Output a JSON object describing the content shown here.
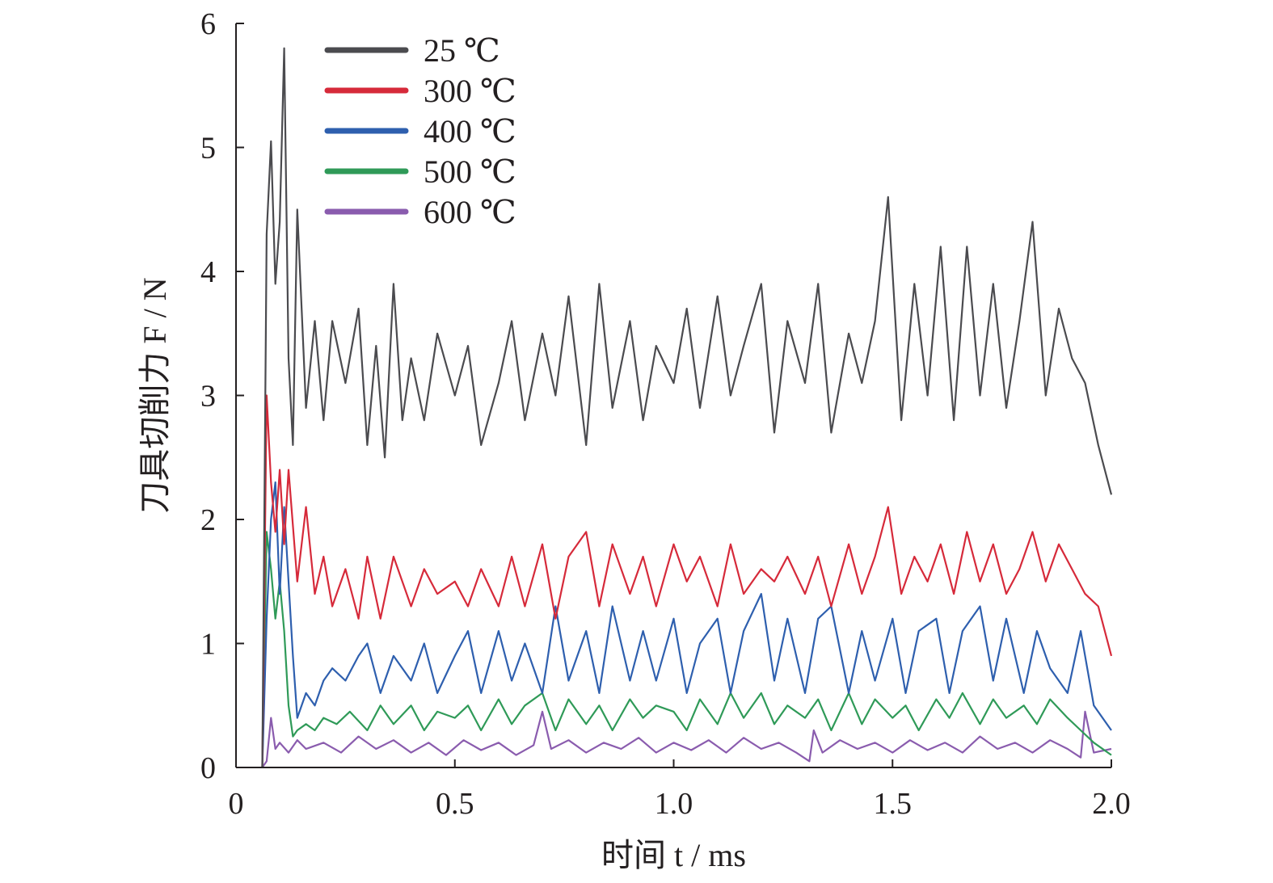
{
  "chart_data": {
    "type": "line",
    "title": "",
    "xlabel": "时间 t / ms",
    "ylabel": "刀具切削力 F / N",
    "xlim": [
      0,
      2.0
    ],
    "ylim": [
      0,
      6
    ],
    "xticks": [
      "0",
      "0.5",
      "1.0",
      "1.5",
      "2.0"
    ],
    "yticks": [
      "0",
      "1",
      "2",
      "3",
      "4",
      "5",
      "6"
    ],
    "grid": false,
    "legend_position": "top-left",
    "series": [
      {
        "name": "25 ℃",
        "color": "#4b4b4f",
        "x": [
          0.06,
          0.07,
          0.08,
          0.09,
          0.1,
          0.11,
          0.12,
          0.13,
          0.14,
          0.16,
          0.18,
          0.2,
          0.22,
          0.25,
          0.28,
          0.3,
          0.32,
          0.34,
          0.36,
          0.38,
          0.4,
          0.43,
          0.46,
          0.5,
          0.53,
          0.56,
          0.6,
          0.63,
          0.66,
          0.7,
          0.73,
          0.76,
          0.8,
          0.83,
          0.86,
          0.9,
          0.93,
          0.96,
          1.0,
          1.03,
          1.06,
          1.1,
          1.13,
          1.16,
          1.2,
          1.23,
          1.26,
          1.3,
          1.33,
          1.36,
          1.4,
          1.43,
          1.46,
          1.49,
          1.52,
          1.55,
          1.58,
          1.61,
          1.64,
          1.67,
          1.7,
          1.73,
          1.76,
          1.79,
          1.82,
          1.85,
          1.88,
          1.91,
          1.94,
          1.97,
          2.0
        ],
        "values": [
          0.0,
          4.3,
          5.05,
          3.9,
          4.4,
          5.8,
          3.3,
          2.6,
          4.5,
          2.9,
          3.6,
          2.8,
          3.6,
          3.1,
          3.7,
          2.6,
          3.4,
          2.5,
          3.9,
          2.8,
          3.3,
          2.8,
          3.5,
          3.0,
          3.4,
          2.6,
          3.1,
          3.6,
          2.8,
          3.5,
          3.0,
          3.8,
          2.6,
          3.9,
          2.9,
          3.6,
          2.8,
          3.4,
          3.1,
          3.7,
          2.9,
          3.8,
          3.0,
          3.4,
          3.9,
          2.7,
          3.6,
          3.1,
          3.9,
          2.7,
          3.5,
          3.1,
          3.6,
          4.6,
          2.8,
          3.9,
          3.0,
          4.2,
          2.8,
          4.2,
          3.0,
          3.9,
          2.9,
          3.6,
          4.4,
          3.0,
          3.7,
          3.3,
          3.1,
          2.6,
          2.2
        ]
      },
      {
        "name": "300 ℃",
        "color": "#d62a3a",
        "x": [
          0.06,
          0.07,
          0.08,
          0.09,
          0.1,
          0.11,
          0.12,
          0.14,
          0.16,
          0.18,
          0.2,
          0.22,
          0.25,
          0.28,
          0.3,
          0.33,
          0.36,
          0.4,
          0.43,
          0.46,
          0.5,
          0.53,
          0.56,
          0.6,
          0.63,
          0.66,
          0.7,
          0.73,
          0.76,
          0.8,
          0.83,
          0.86,
          0.9,
          0.93,
          0.96,
          1.0,
          1.03,
          1.06,
          1.1,
          1.13,
          1.16,
          1.2,
          1.23,
          1.26,
          1.3,
          1.33,
          1.36,
          1.4,
          1.43,
          1.46,
          1.49,
          1.52,
          1.55,
          1.58,
          1.61,
          1.64,
          1.67,
          1.7,
          1.73,
          1.76,
          1.79,
          1.82,
          1.85,
          1.88,
          1.91,
          1.94,
          1.97,
          2.0
        ],
        "values": [
          0.0,
          3.0,
          2.3,
          1.9,
          2.4,
          1.8,
          2.4,
          1.5,
          2.1,
          1.4,
          1.7,
          1.3,
          1.6,
          1.2,
          1.7,
          1.2,
          1.7,
          1.3,
          1.6,
          1.4,
          1.5,
          1.3,
          1.6,
          1.3,
          1.7,
          1.3,
          1.8,
          1.2,
          1.7,
          1.9,
          1.3,
          1.8,
          1.4,
          1.7,
          1.3,
          1.8,
          1.5,
          1.7,
          1.3,
          1.8,
          1.4,
          1.6,
          1.5,
          1.7,
          1.4,
          1.7,
          1.3,
          1.8,
          1.4,
          1.7,
          2.1,
          1.4,
          1.7,
          1.5,
          1.8,
          1.4,
          1.9,
          1.5,
          1.8,
          1.4,
          1.6,
          1.9,
          1.5,
          1.8,
          1.6,
          1.4,
          1.3,
          0.9
        ]
      },
      {
        "name": "400 ℃",
        "color": "#2e5fae",
        "x": [
          0.06,
          0.07,
          0.08,
          0.09,
          0.1,
          0.11,
          0.12,
          0.13,
          0.14,
          0.16,
          0.18,
          0.2,
          0.22,
          0.25,
          0.28,
          0.3,
          0.33,
          0.36,
          0.4,
          0.43,
          0.46,
          0.5,
          0.53,
          0.56,
          0.6,
          0.63,
          0.66,
          0.7,
          0.73,
          0.76,
          0.8,
          0.83,
          0.86,
          0.9,
          0.93,
          0.96,
          1.0,
          1.03,
          1.06,
          1.1,
          1.13,
          1.16,
          1.2,
          1.23,
          1.26,
          1.3,
          1.33,
          1.36,
          1.4,
          1.43,
          1.46,
          1.5,
          1.53,
          1.56,
          1.6,
          1.63,
          1.66,
          1.7,
          1.73,
          1.76,
          1.8,
          1.83,
          1.86,
          1.9,
          1.93,
          1.96,
          2.0
        ],
        "values": [
          0.0,
          1.2,
          2.0,
          2.3,
          1.4,
          2.1,
          1.5,
          0.9,
          0.4,
          0.6,
          0.5,
          0.7,
          0.8,
          0.7,
          0.9,
          1.0,
          0.6,
          0.9,
          0.7,
          1.0,
          0.6,
          0.9,
          1.1,
          0.6,
          1.1,
          0.7,
          1.0,
          0.6,
          1.3,
          0.7,
          1.1,
          0.6,
          1.3,
          0.7,
          1.1,
          0.7,
          1.2,
          0.6,
          1.0,
          1.2,
          0.6,
          1.1,
          1.4,
          0.7,
          1.2,
          0.6,
          1.2,
          1.3,
          0.6,
          1.1,
          0.7,
          1.2,
          0.6,
          1.1,
          1.2,
          0.6,
          1.1,
          1.3,
          0.7,
          1.2,
          0.6,
          1.1,
          0.8,
          0.6,
          1.1,
          0.5,
          0.3
        ]
      },
      {
        "name": "500 ℃",
        "color": "#2f9a58",
        "x": [
          0.06,
          0.07,
          0.08,
          0.09,
          0.1,
          0.11,
          0.12,
          0.13,
          0.14,
          0.16,
          0.18,
          0.2,
          0.23,
          0.26,
          0.3,
          0.33,
          0.36,
          0.4,
          0.43,
          0.46,
          0.5,
          0.53,
          0.56,
          0.6,
          0.63,
          0.66,
          0.7,
          0.73,
          0.76,
          0.8,
          0.83,
          0.86,
          0.9,
          0.93,
          0.96,
          1.0,
          1.03,
          1.06,
          1.1,
          1.13,
          1.16,
          1.2,
          1.23,
          1.26,
          1.3,
          1.33,
          1.36,
          1.4,
          1.43,
          1.46,
          1.5,
          1.53,
          1.56,
          1.6,
          1.63,
          1.66,
          1.7,
          1.73,
          1.76,
          1.8,
          1.83,
          1.86,
          1.9,
          1.93,
          1.96,
          2.0
        ],
        "values": [
          0.0,
          1.9,
          1.6,
          1.2,
          1.5,
          1.1,
          0.5,
          0.25,
          0.3,
          0.35,
          0.3,
          0.4,
          0.35,
          0.45,
          0.3,
          0.5,
          0.35,
          0.5,
          0.3,
          0.45,
          0.4,
          0.5,
          0.3,
          0.55,
          0.35,
          0.5,
          0.6,
          0.3,
          0.55,
          0.35,
          0.5,
          0.3,
          0.55,
          0.4,
          0.5,
          0.45,
          0.3,
          0.55,
          0.35,
          0.6,
          0.4,
          0.6,
          0.35,
          0.5,
          0.4,
          0.55,
          0.3,
          0.6,
          0.35,
          0.55,
          0.4,
          0.5,
          0.3,
          0.55,
          0.4,
          0.6,
          0.35,
          0.55,
          0.4,
          0.5,
          0.35,
          0.55,
          0.4,
          0.3,
          0.2,
          0.1
        ]
      },
      {
        "name": "600 ℃",
        "color": "#8a5cae",
        "x": [
          0.06,
          0.07,
          0.08,
          0.09,
          0.1,
          0.12,
          0.14,
          0.16,
          0.2,
          0.24,
          0.28,
          0.32,
          0.36,
          0.4,
          0.44,
          0.48,
          0.52,
          0.56,
          0.6,
          0.64,
          0.68,
          0.7,
          0.72,
          0.76,
          0.8,
          0.84,
          0.88,
          0.92,
          0.96,
          1.0,
          1.04,
          1.08,
          1.12,
          1.16,
          1.2,
          1.24,
          1.28,
          1.31,
          1.32,
          1.34,
          1.38,
          1.42,
          1.46,
          1.5,
          1.54,
          1.58,
          1.62,
          1.66,
          1.7,
          1.74,
          1.78,
          1.82,
          1.86,
          1.9,
          1.93,
          1.94,
          1.96,
          2.0
        ],
        "values": [
          0.0,
          0.05,
          0.4,
          0.15,
          0.2,
          0.12,
          0.22,
          0.15,
          0.2,
          0.12,
          0.25,
          0.15,
          0.22,
          0.12,
          0.2,
          0.1,
          0.22,
          0.14,
          0.2,
          0.1,
          0.18,
          0.45,
          0.15,
          0.22,
          0.12,
          0.2,
          0.15,
          0.24,
          0.12,
          0.2,
          0.14,
          0.22,
          0.12,
          0.24,
          0.15,
          0.2,
          0.12,
          0.05,
          0.3,
          0.12,
          0.22,
          0.15,
          0.2,
          0.12,
          0.22,
          0.14,
          0.2,
          0.12,
          0.25,
          0.15,
          0.2,
          0.12,
          0.22,
          0.15,
          0.08,
          0.45,
          0.12,
          0.15
        ]
      }
    ]
  }
}
